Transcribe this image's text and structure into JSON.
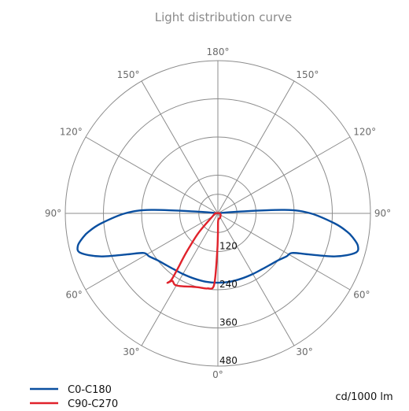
{
  "chart_data": {
    "type": "polar-line",
    "title": "Light distribution curve",
    "unit": "cd/1000 lm",
    "radial_max": 480,
    "radial_ticks": [
      120,
      240,
      360,
      480
    ],
    "radial_tick_labels": [
      "120",
      "240",
      "360",
      "480"
    ],
    "angular_ticks": [
      {
        "angle": 180,
        "label": "180°",
        "side": "top"
      },
      {
        "angle": 150,
        "label": "150°",
        "side": "left"
      },
      {
        "angle": 150,
        "label": "150°",
        "side": "right"
      },
      {
        "angle": 120,
        "label": "120°",
        "side": "left"
      },
      {
        "angle": 120,
        "label": "120°",
        "side": "right"
      },
      {
        "angle": 90,
        "label": "90°",
        "side": "left"
      },
      {
        "angle": 90,
        "label": "90°",
        "side": "right"
      },
      {
        "angle": 60,
        "label": "60°",
        "side": "left"
      },
      {
        "angle": 60,
        "label": "60°",
        "side": "right"
      },
      {
        "angle": 30,
        "label": "30°",
        "side": "left"
      },
      {
        "angle": 30,
        "label": "30°",
        "side": "right"
      },
      {
        "angle": 0,
        "label": "0°",
        "side": "bottom"
      }
    ],
    "series": [
      {
        "name": "C0-C180",
        "color": "#0a4fa0",
        "points": [
          [
            -98,
            5
          ],
          [
            -95,
            60
          ],
          [
            -93,
            210
          ],
          [
            -90,
            292
          ],
          [
            -85,
            370
          ],
          [
            -82,
            410
          ],
          [
            -80,
            430
          ],
          [
            -77,
            452
          ],
          [
            -74,
            450
          ],
          [
            -70,
            395
          ],
          [
            -66,
            318
          ],
          [
            -62,
            265
          ],
          [
            -58,
            255
          ],
          [
            -52,
            240
          ],
          [
            -45,
            230
          ],
          [
            -40,
            225
          ],
          [
            -30,
            220
          ],
          [
            -20,
            218
          ],
          [
            -10,
            218
          ],
          [
            0,
            218
          ],
          [
            10,
            218
          ],
          [
            20,
            218
          ],
          [
            30,
            220
          ],
          [
            40,
            225
          ],
          [
            45,
            230
          ],
          [
            52,
            240
          ],
          [
            58,
            255
          ],
          [
            62,
            265
          ],
          [
            66,
            318
          ],
          [
            70,
            395
          ],
          [
            74,
            450
          ],
          [
            77,
            452
          ],
          [
            80,
            430
          ],
          [
            82,
            410
          ],
          [
            85,
            370
          ],
          [
            90,
            292
          ],
          [
            93,
            210
          ],
          [
            95,
            60
          ],
          [
            98,
            5
          ]
        ]
      },
      {
        "name": "C90-C270",
        "color": "#e0222b",
        "points": [
          [
            -100,
            4
          ],
          [
            -85,
            10
          ],
          [
            -60,
            20
          ],
          [
            -45,
            85
          ],
          [
            -40,
            140
          ],
          [
            -38,
            175
          ],
          [
            -36,
            215
          ],
          [
            -35,
            255
          ],
          [
            -36,
            270
          ],
          [
            -34,
            256
          ],
          [
            -31,
            262
          ],
          [
            -26,
            255
          ],
          [
            -20,
            245
          ],
          [
            -14,
            240
          ],
          [
            -8,
            238
          ],
          [
            -3,
            225
          ],
          [
            -1,
            120
          ],
          [
            0,
            70
          ],
          [
            1,
            30
          ],
          [
            6,
            18
          ],
          [
            15,
            17
          ],
          [
            22,
            16
          ],
          [
            30,
            15
          ],
          [
            60,
            10
          ],
          [
            85,
            7
          ],
          [
            100,
            4
          ]
        ]
      }
    ],
    "legend": [
      {
        "label": "C0-C180",
        "color": "#0a4fa0"
      },
      {
        "label": "C90-C270",
        "color": "#e0222b"
      }
    ]
  }
}
